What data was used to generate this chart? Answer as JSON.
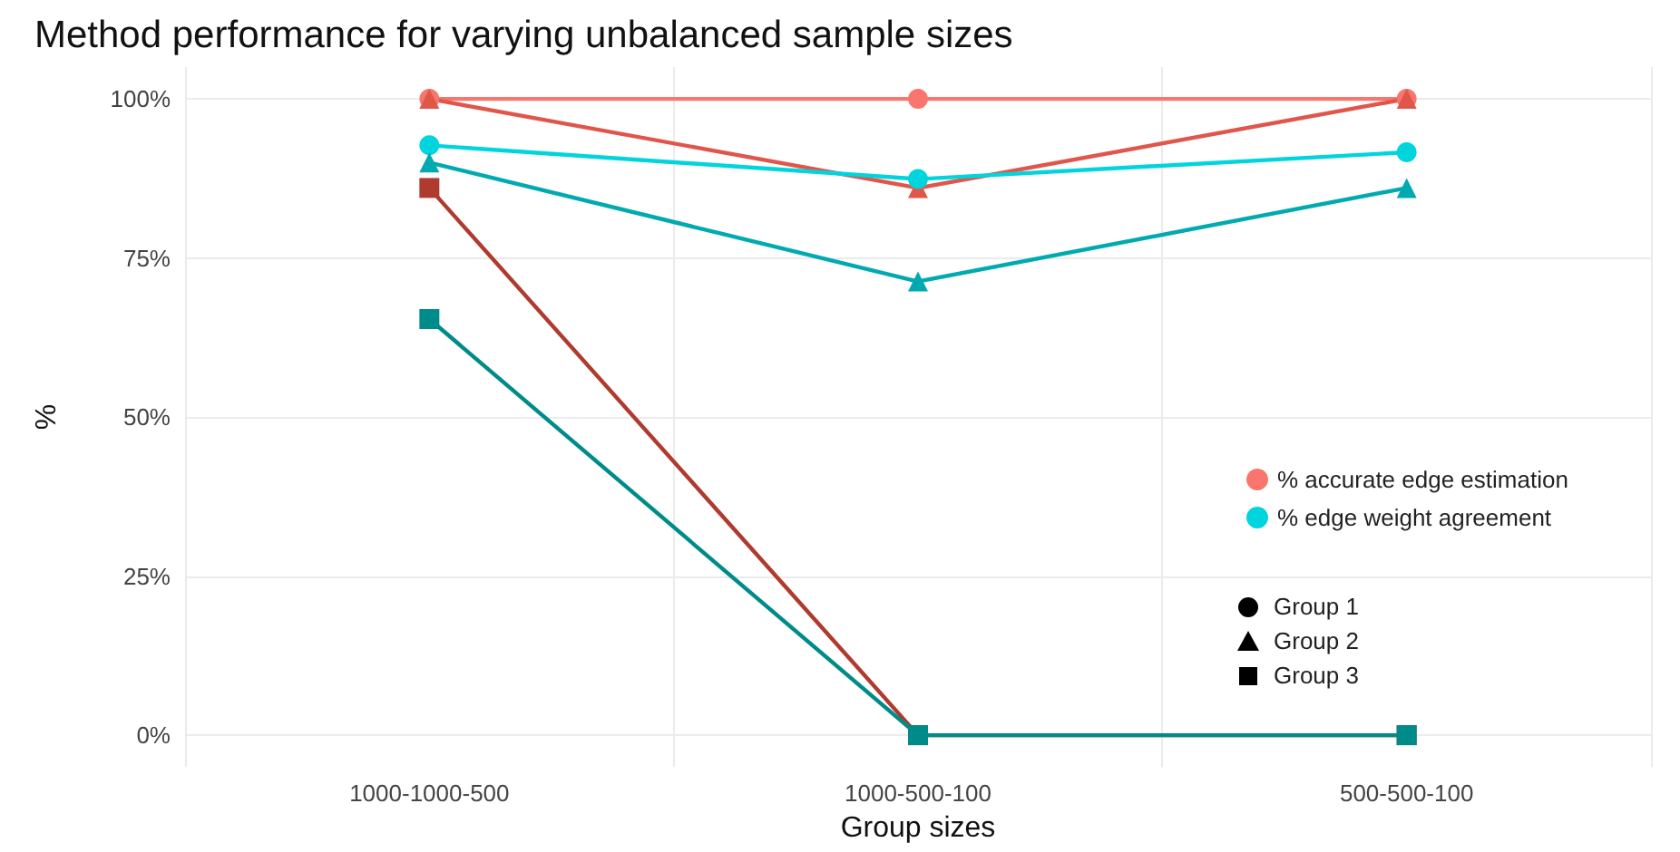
{
  "chart_data": {
    "type": "line",
    "title": "Method performance for varying unbalanced sample sizes",
    "xlabel": "Group sizes",
    "ylabel": "%",
    "categories": [
      "1000-1000-500",
      "1000-500-100",
      "500-500-100"
    ],
    "series": [
      {
        "name": "% accurate edge estimation",
        "color": "#f8766d",
        "marker": "circle",
        "values": [
          100,
          100,
          100
        ]
      },
      {
        "color": "#e0564b",
        "marker": "triangle",
        "values": [
          100,
          86,
          100
        ]
      },
      {
        "color": "#b03a2e",
        "marker": "square",
        "values": [
          86,
          0,
          0
        ]
      },
      {
        "name": "% edge weight agreement",
        "color": "#00d4dc",
        "marker": "circle",
        "values": [
          92.7,
          87.4,
          91.6
        ]
      },
      {
        "color": "#00aab0",
        "marker": "triangle",
        "values": [
          90,
          71.3,
          86
        ]
      },
      {
        "color": "#008b8b",
        "marker": "square",
        "values": [
          65.4,
          0,
          0
        ]
      }
    ],
    "annotations": [
      "Group 1",
      "Group 2",
      "Group 3"
    ],
    "ylim": [
      -5,
      105
    ],
    "yticks": [
      {
        "value": 0,
        "label": "0%"
      },
      {
        "value": 25,
        "label": "25%"
      },
      {
        "value": 50,
        "label": "50%"
      },
      {
        "value": 75,
        "label": "75%"
      },
      {
        "value": 100,
        "label": "100%"
      }
    ],
    "grid": true,
    "legend": "right",
    "line_style": "solid"
  }
}
